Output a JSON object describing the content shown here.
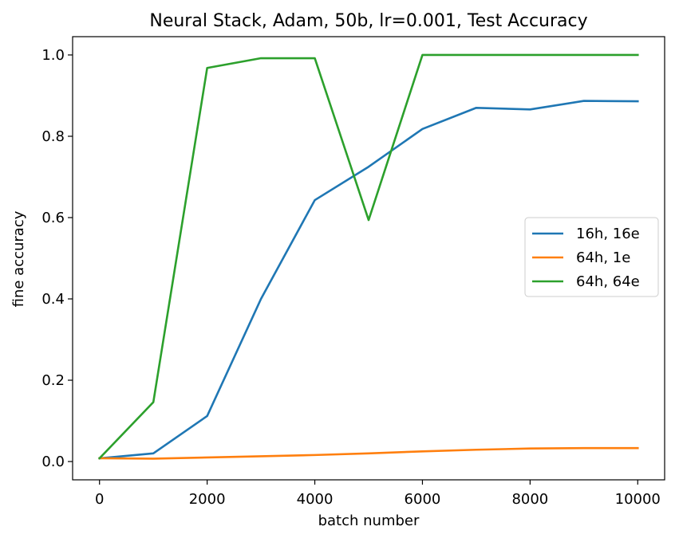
{
  "chart_data": {
    "type": "line",
    "title": "Neural Stack, Adam, 50b, lr=0.001, Test Accuracy",
    "xlabel": "batch number",
    "ylabel": "fine accuracy",
    "xlim": [
      -500,
      10500
    ],
    "ylim": [
      -0.045,
      1.045
    ],
    "xticks": [
      0,
      2000,
      4000,
      6000,
      8000,
      10000
    ],
    "xtick_labels": [
      "0",
      "2000",
      "4000",
      "6000",
      "8000",
      "10000"
    ],
    "yticks": [
      0.0,
      0.2,
      0.4,
      0.6,
      0.8,
      1.0
    ],
    "ytick_labels": [
      "0.0",
      "0.2",
      "0.4",
      "0.6",
      "0.8",
      "1.0"
    ],
    "grid": false,
    "legend_position": "center-right",
    "x": [
      0,
      1000,
      2000,
      3000,
      4000,
      5000,
      6000,
      7000,
      8000,
      9000,
      10000
    ],
    "series": [
      {
        "name": "16h, 16e",
        "color": "#1f77b4",
        "values": [
          0.008,
          0.02,
          0.112,
          0.4,
          0.643,
          0.725,
          0.818,
          0.87,
          0.866,
          0.887,
          0.886
        ]
      },
      {
        "name": "64h, 1e",
        "color": "#ff7f0e",
        "values": [
          0.008,
          0.007,
          0.01,
          0.013,
          0.016,
          0.02,
          0.025,
          0.029,
          0.032,
          0.033,
          0.033
        ]
      },
      {
        "name": "64h, 64e",
        "color": "#2ca02c",
        "values": [
          0.008,
          0.146,
          0.968,
          0.992,
          0.992,
          0.594,
          1.0,
          1.0,
          1.0,
          1.0,
          1.0
        ]
      }
    ]
  }
}
